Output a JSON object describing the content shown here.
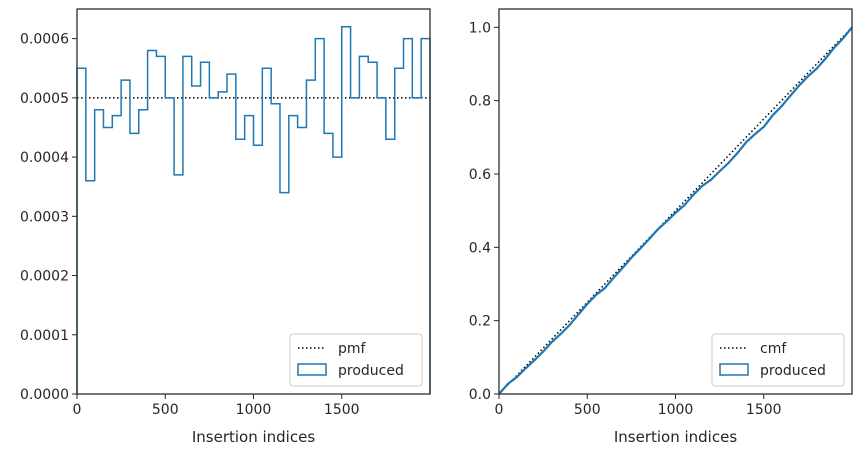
{
  "colors": {
    "pmf_line": "#000000",
    "hist": "#1f77b4",
    "axes": "#262626",
    "legend_border": "#cccccc"
  },
  "chart_data": [
    {
      "type": "histogram-step",
      "xlabel": "Insertion indices",
      "ylabel": "",
      "xlim": [
        0,
        2000
      ],
      "ylim": [
        0,
        0.00065
      ],
      "xticks": [
        0,
        500,
        1000,
        1500
      ],
      "xtick_labels": [
        "0",
        "500",
        "1000",
        "1500"
      ],
      "yticks": [
        0,
        0.0001,
        0.0002,
        0.0003,
        0.0004,
        0.0005,
        0.0006
      ],
      "ytick_labels": [
        "0.0000",
        "0.0001",
        "0.0002",
        "0.0003",
        "0.0004",
        "0.0005",
        "0.0006"
      ],
      "legend_position": "lower right",
      "series": [
        {
          "name": "pmf",
          "style": "dotted",
          "x": [
            0,
            2000
          ],
          "y": [
            0.0005,
            0.0005
          ]
        },
        {
          "name": "produced",
          "style": "step",
          "bin_width": 50,
          "values": [
            0.00055,
            0.00036,
            0.00048,
            0.00045,
            0.00047,
            0.00053,
            0.00044,
            0.00048,
            0.00058,
            0.00057,
            0.0005,
            0.00037,
            0.00057,
            0.00052,
            0.00056,
            0.0005,
            0.00051,
            0.00054,
            0.00043,
            0.00047,
            0.00042,
            0.00055,
            0.00049,
            0.00034,
            0.00047,
            0.00045,
            0.00053,
            0.0006,
            0.00044,
            0.0004,
            0.00062,
            0.0005,
            0.00057,
            0.00056,
            0.0005,
            0.00043,
            0.00055,
            0.0006,
            0.0005,
            0.0006
          ]
        }
      ]
    },
    {
      "type": "line",
      "xlabel": "Insertion indices",
      "ylabel": "",
      "xlim": [
        0,
        2000
      ],
      "ylim": [
        0,
        1.05
      ],
      "xticks": [
        0,
        500,
        1000,
        1500
      ],
      "xtick_labels": [
        "0",
        "500",
        "1000",
        "1500"
      ],
      "yticks": [
        0,
        0.2,
        0.4,
        0.6,
        0.8,
        1.0
      ],
      "ytick_labels": [
        "0.0",
        "0.2",
        "0.4",
        "0.6",
        "0.8",
        "1.0"
      ],
      "legend_position": "lower right",
      "series": [
        {
          "name": "cmf",
          "style": "dotted",
          "x": [
            0,
            2000
          ],
          "y": [
            0,
            1.0
          ]
        },
        {
          "name": "produced",
          "style": "solid",
          "x": [
            0,
            50,
            100,
            150,
            200,
            250,
            300,
            350,
            400,
            450,
            500,
            550,
            600,
            650,
            700,
            750,
            800,
            850,
            900,
            950,
            1000,
            1050,
            1100,
            1150,
            1200,
            1250,
            1300,
            1350,
            1400,
            1450,
            1500,
            1550,
            1600,
            1650,
            1700,
            1750,
            1800,
            1850,
            1900,
            1950,
            2000
          ],
          "y": [
            0,
            0.0275,
            0.0455,
            0.0695,
            0.092,
            0.1155,
            0.142,
            0.164,
            0.188,
            0.217,
            0.2455,
            0.2705,
            0.289,
            0.3175,
            0.3435,
            0.3715,
            0.3965,
            0.422,
            0.449,
            0.4705,
            0.494,
            0.515,
            0.5425,
            0.567,
            0.584,
            0.6075,
            0.63,
            0.6565,
            0.6865,
            0.7085,
            0.7285,
            0.7595,
            0.7845,
            0.813,
            0.841,
            0.866,
            0.8875,
            0.915,
            0.945,
            0.97,
            1.0
          ]
        }
      ]
    }
  ]
}
